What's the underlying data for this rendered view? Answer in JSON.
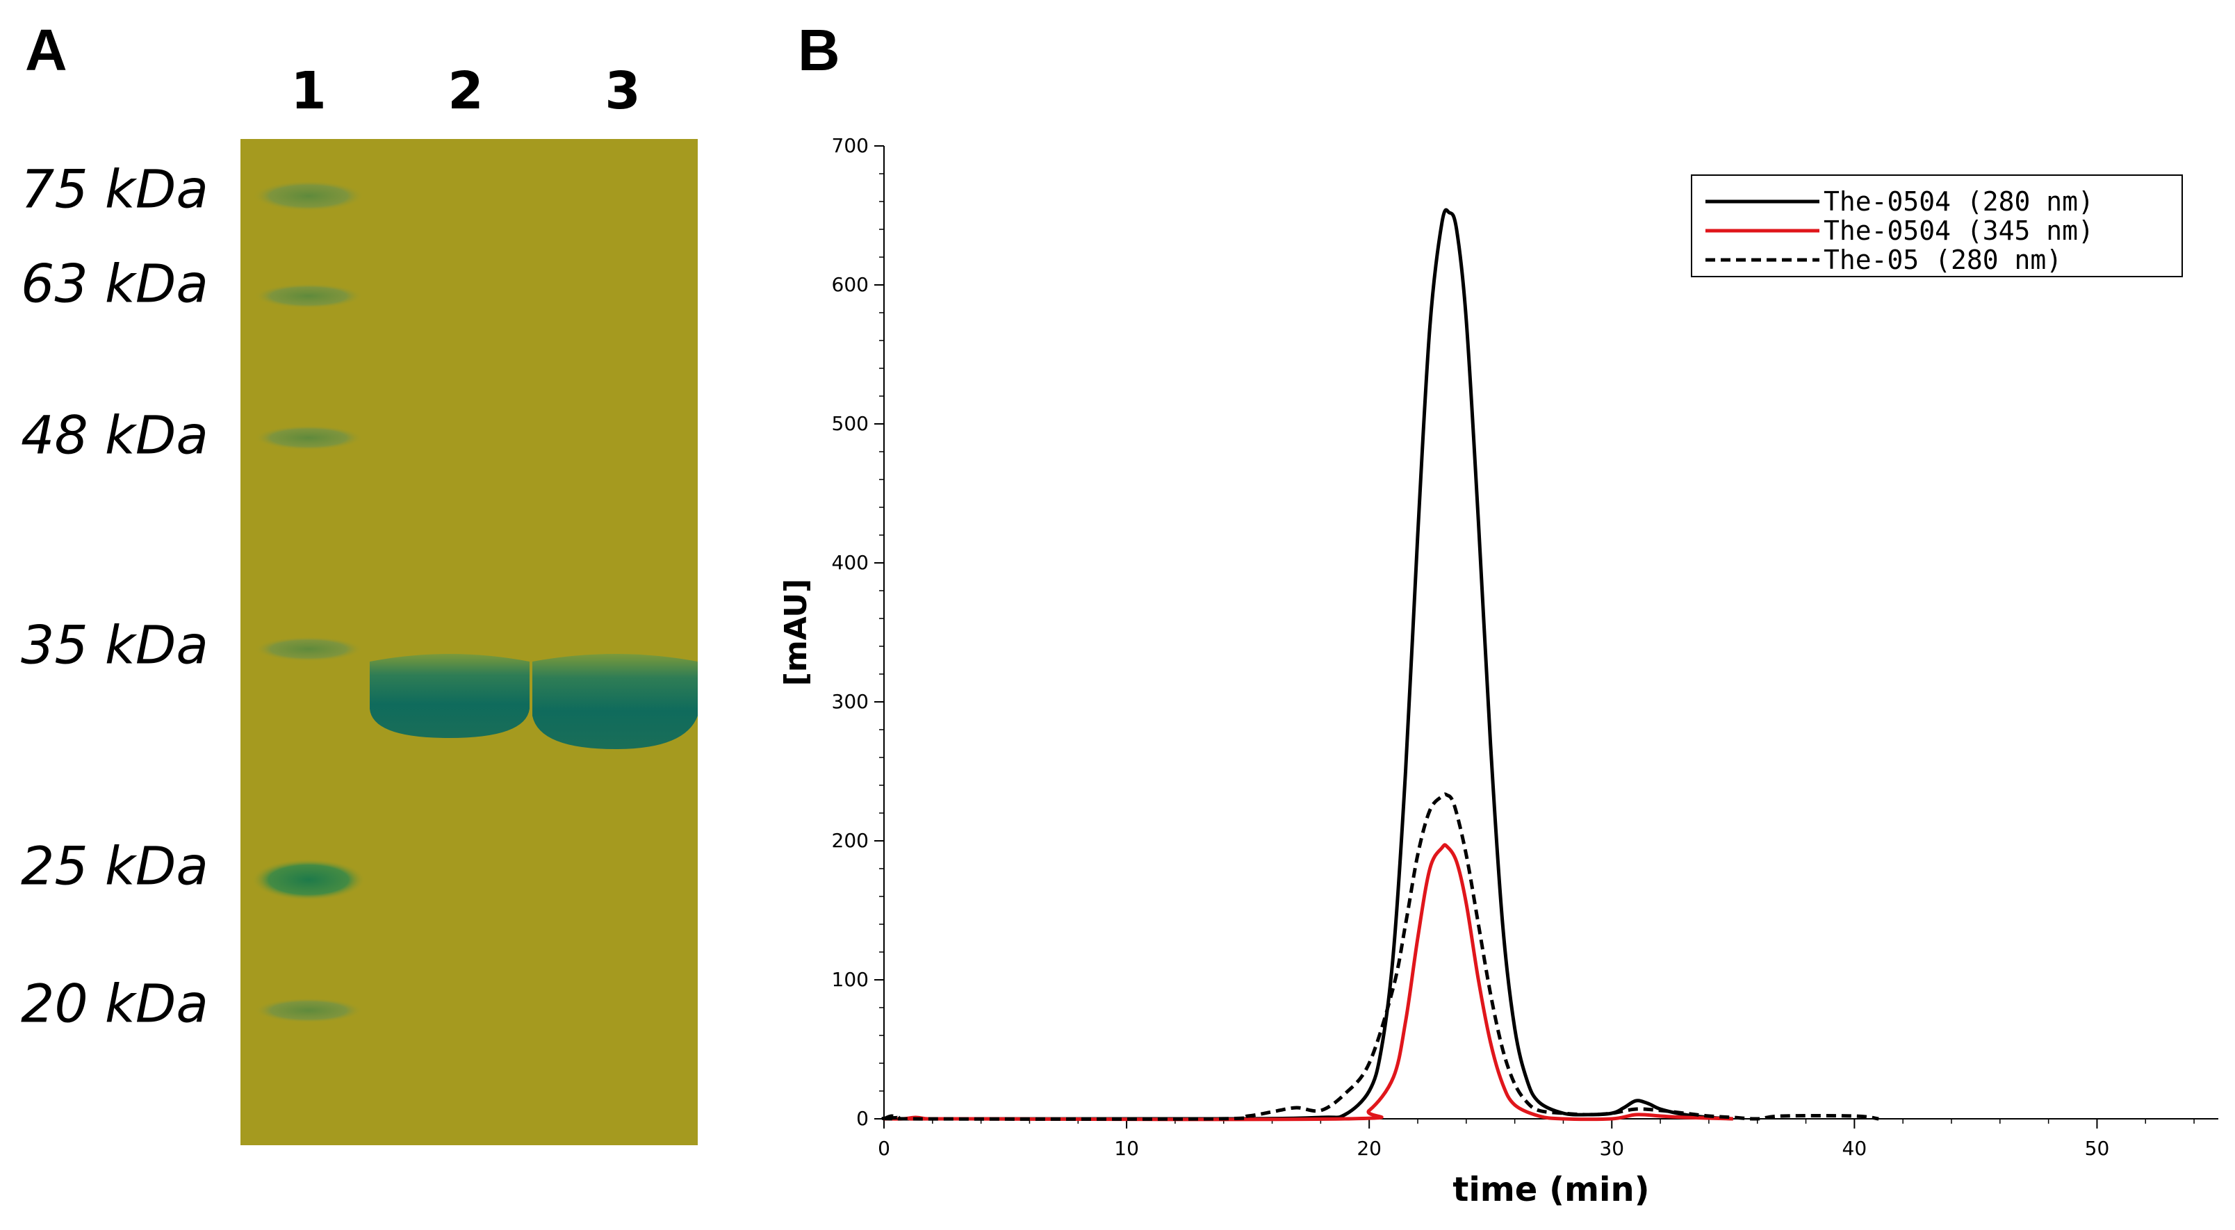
{
  "panels": {
    "a_label": "A",
    "b_label": "B"
  },
  "gel": {
    "lanes": [
      "1",
      "2",
      "3"
    ],
    "markers": [
      {
        "label": "75 kDa",
        "kda": 75
      },
      {
        "label": "63 kDa",
        "kda": 63
      },
      {
        "label": "48 kDa",
        "kda": 48
      },
      {
        "label": "35 kDa",
        "kda": 35
      },
      {
        "label": "25 kDa",
        "kda": 25
      },
      {
        "label": "20 kDa",
        "kda": 20
      }
    ],
    "colors": {
      "background": "#a59a1f",
      "ladder_band": "#6f8e3e",
      "sample_band": "#0f6b5c"
    }
  },
  "chart_data": {
    "type": "line",
    "title": "",
    "xlabel": "time (min)",
    "ylabel": "[mAU]",
    "xlim": [
      0,
      55
    ],
    "ylim": [
      0,
      700
    ],
    "xticks": [
      0,
      10,
      20,
      30,
      40,
      50
    ],
    "yticks": [
      0,
      100,
      200,
      300,
      400,
      500,
      600,
      700
    ],
    "legend_position": "top-right",
    "series": [
      {
        "name": "The-0504 (280 nm)",
        "color": "#000000",
        "dash": "solid",
        "x": [
          0,
          14,
          18,
          19,
          20,
          20.5,
          21,
          21.5,
          22,
          22.5,
          23,
          23.3,
          23.6,
          24,
          24.5,
          25,
          25.5,
          26,
          26.5,
          27,
          28,
          29,
          30,
          30.5,
          31,
          31.5,
          32,
          33,
          34,
          35
        ],
        "y": [
          0,
          0,
          1,
          3,
          20,
          50,
          120,
          250,
          420,
          570,
          645,
          652,
          640,
          575,
          430,
          270,
          140,
          65,
          28,
          12,
          4,
          3,
          4,
          8,
          13,
          11,
          7,
          3,
          1,
          0
        ]
      },
      {
        "name": "The-0504 (345 nm)",
        "color": "#e0161b",
        "dash": "solid",
        "x": [
          0,
          0.8,
          1.3,
          1.8,
          2.5,
          19,
          20,
          21,
          21.5,
          22,
          22.5,
          23,
          23.2,
          23.6,
          24,
          24.5,
          25,
          25.5,
          26,
          27,
          28,
          30,
          31,
          32,
          33,
          35
        ],
        "y": [
          0,
          0,
          1,
          0,
          0,
          0,
          6,
          30,
          70,
          130,
          180,
          195,
          196,
          185,
          155,
          100,
          55,
          25,
          10,
          2,
          0,
          0,
          3,
          2,
          1,
          0
        ]
      },
      {
        "name": "The-05 (280 nm)",
        "color": "#000000",
        "dash": "dashed",
        "x": [
          0,
          0.3,
          0.6,
          1,
          13.5,
          15,
          16,
          17,
          18,
          19,
          20,
          21,
          21.5,
          22,
          22.5,
          23,
          23.2,
          23.5,
          24,
          24.5,
          25,
          25.5,
          26,
          26.5,
          27,
          28,
          29,
          30,
          31,
          32,
          33,
          34,
          35,
          36,
          37,
          40,
          41
        ],
        "y": [
          0,
          2,
          1,
          0,
          0,
          2,
          5,
          8,
          6,
          18,
          40,
          95,
          140,
          190,
          222,
          232,
          233,
          226,
          190,
          140,
          90,
          50,
          25,
          12,
          6,
          4,
          3,
          4,
          7,
          6,
          4,
          2,
          1,
          0,
          2,
          2,
          0
        ]
      }
    ]
  }
}
